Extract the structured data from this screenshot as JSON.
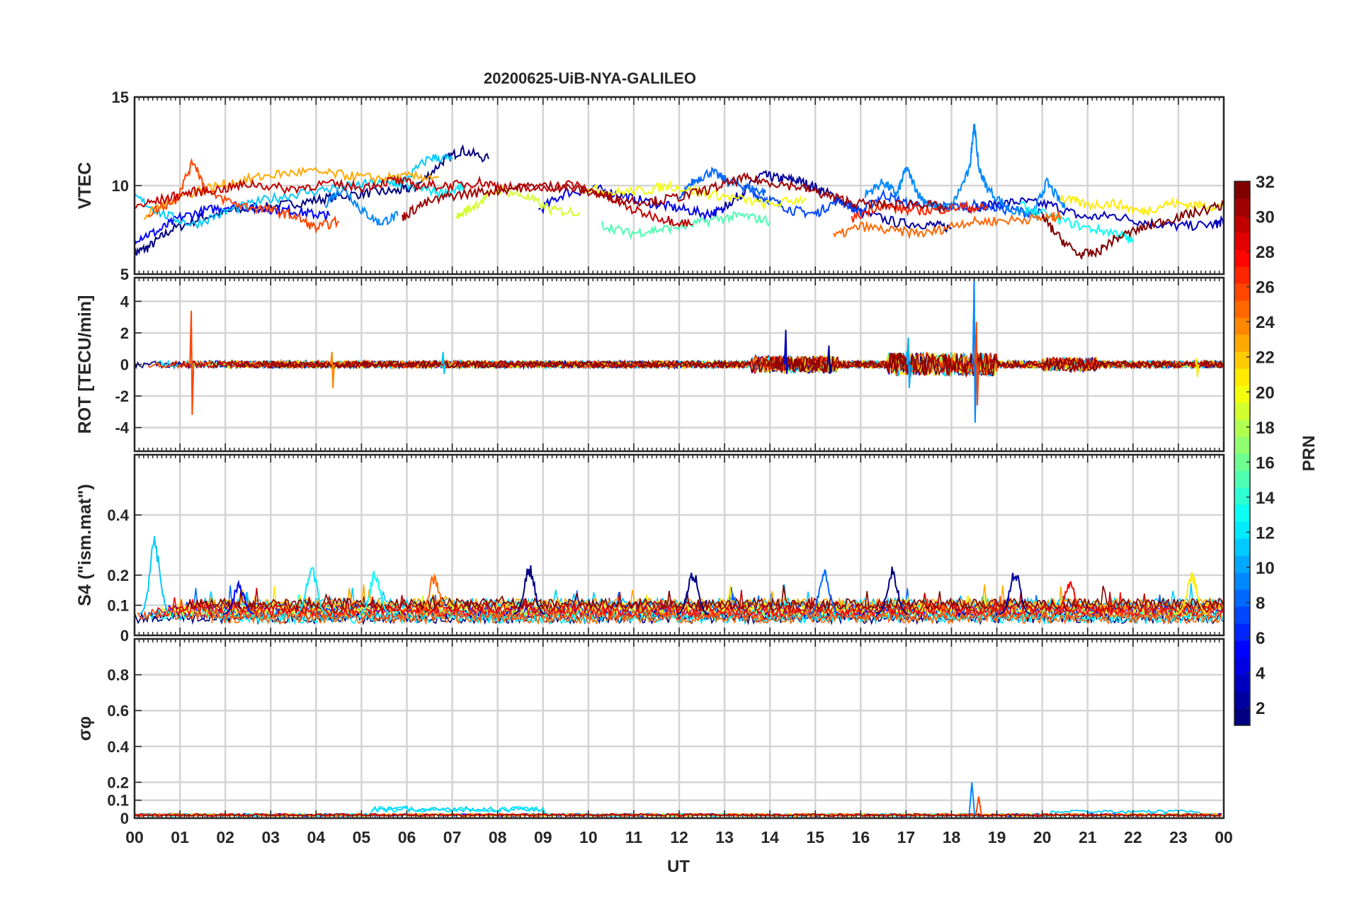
{
  "chart_data": {
    "type": "line",
    "title": "20200625-UiB-NYA-GALILEO",
    "xlabel": "UT",
    "x_ticks": [
      "00",
      "01",
      "02",
      "03",
      "04",
      "05",
      "06",
      "07",
      "08",
      "09",
      "10",
      "11",
      "12",
      "13",
      "14",
      "15",
      "16",
      "17",
      "18",
      "19",
      "20",
      "21",
      "22",
      "23",
      "00"
    ],
    "xlim": [
      0,
      24
    ],
    "grid": true,
    "colormap": "jet",
    "colorbar": {
      "label": "PRN",
      "range": [
        1,
        32
      ],
      "ticks": [
        "2",
        "4",
        "6",
        "8",
        "10",
        "12",
        "14",
        "16",
        "18",
        "20",
        "22",
        "24",
        "26",
        "28",
        "30",
        "32"
      ],
      "placement": "right"
    },
    "panels": [
      {
        "id": "vtec",
        "ylabel": "VTEC",
        "ylim": [
          5,
          15
        ],
        "y_ticks": [
          "15",
          "10",
          "5"
        ],
        "y_tick_values": [
          15,
          10,
          5
        ],
        "series": [
          {
            "prn": 1,
            "x": [
              0,
              0.3,
              0.8,
              1.5,
              2.2,
              3.0,
              3.8,
              4.5,
              5.2,
              5.8,
              6.2,
              6.8,
              7.2,
              7.8
            ],
            "y": [
              6.2,
              6.5,
              7.5,
              8.2,
              8.6,
              8.8,
              9.1,
              9.4,
              9.6,
              9.7,
              9.9,
              11.4,
              12.0,
              11.5
            ]
          },
          {
            "prn": 2,
            "x": [
              13.0,
              13.4,
              13.8,
              14.2,
              14.6,
              15.0,
              15.4,
              16.0,
              16.8,
              17.5,
              18.0
            ],
            "y": [
              8.8,
              9.6,
              10.6,
              10.4,
              10.3,
              9.9,
              9.4,
              8.5,
              7.9,
              7.8,
              7.6
            ]
          },
          {
            "prn": 3,
            "x": [
              18.3,
              18.8,
              19.5,
              20.2,
              20.9,
              21.6,
              22.3,
              23.0,
              23.8,
              24.0
            ],
            "y": [
              8.7,
              8.9,
              9.1,
              8.9,
              8.2,
              8.3,
              7.9,
              7.7,
              7.8,
              8.0
            ]
          },
          {
            "prn": 4,
            "x": [
              8.9,
              9.5,
              10.2,
              10.8,
              11.4,
              12.0,
              12.6,
              13.0
            ],
            "y": [
              8.6,
              9.6,
              9.8,
              9.4,
              9.0,
              8.7,
              8.4,
              8.6
            ]
          },
          {
            "prn": 5,
            "x": [
              0,
              0.5,
              1.0,
              1.6,
              2.2,
              2.8,
              3.4,
              3.9,
              4.3
            ],
            "y": [
              7.0,
              7.4,
              8.2,
              8.6,
              8.9,
              8.7,
              8.6,
              8.4,
              8.3
            ]
          },
          {
            "prn": 7,
            "x": [
              13.6,
              14.0,
              14.5,
              15.0,
              15.5,
              16.0,
              16.5,
              17.0,
              17.5,
              18.0,
              18.6,
              19.3,
              20.0
            ],
            "y": [
              9.5,
              9.2,
              8.6,
              8.4,
              9.2,
              8.5,
              9.5,
              9.0,
              8.9,
              8.8,
              8.9,
              8.6,
              8.4
            ]
          },
          {
            "prn": 8,
            "x": [
              12.0,
              12.3,
              12.7,
              13.1,
              13.5,
              13.9
            ],
            "y": [
              9.2,
              10.2,
              10.8,
              10.2,
              9.9,
              9.6
            ]
          },
          {
            "prn": 9,
            "x": [
              16.1,
              16.5,
              16.8,
              17.0,
              17.3,
              17.6,
              18.0,
              18.4,
              18.5,
              18.6,
              18.8,
              19.3,
              19.8,
              20.1,
              20.5
            ],
            "y": [
              9.5,
              10.2,
              9.5,
              11.0,
              9.4,
              8.8,
              8.8,
              10.9,
              13.6,
              11.0,
              9.8,
              8.6,
              8.4,
              10.2,
              8.7
            ]
          },
          {
            "prn": 9,
            "x": [
              4.2,
              4.6,
              5.0,
              5.4,
              5.8
            ],
            "y": [
              9.0,
              9.9,
              8.6,
              7.9,
              8.3
            ]
          },
          {
            "prn": 11,
            "x": [
              0,
              0.6,
              1.3,
              2.1,
              2.9,
              3.7,
              4.5,
              5.2,
              5.9,
              6.5,
              7.0
            ],
            "y": [
              9.4,
              8.4,
              7.8,
              8.6,
              9.2,
              9.6,
              9.9,
              10.1,
              10.2,
              11.6,
              11.5
            ]
          },
          {
            "prn": 12,
            "x": [
              5.6,
              6.2,
              6.8,
              7.3
            ],
            "y": [
              10.3,
              9.9,
              9.6,
              9.9
            ]
          },
          {
            "prn": 13,
            "x": [
              19.5,
              20.2,
              21.0,
              21.7,
              22.0
            ],
            "y": [
              8.9,
              8.2,
              7.6,
              7.3,
              6.8
            ]
          },
          {
            "prn": 15,
            "x": [
              10.3,
              10.9,
              11.5,
              12.1,
              12.8,
              13.4,
              14.0
            ],
            "y": [
              7.8,
              7.3,
              7.5,
              7.7,
              8.1,
              8.3,
              8.0
            ]
          },
          {
            "prn": 19,
            "x": [
              7.1,
              7.5,
              8.0,
              8.6,
              9.2,
              9.8
            ],
            "y": [
              8.2,
              8.9,
              9.8,
              9.4,
              8.6,
              8.5
            ]
          },
          {
            "prn": 20,
            "x": [
              9.9,
              10.5,
              11.2,
              11.8,
              12.5,
              13.2,
              14.0,
              14.8
            ],
            "y": [
              9.9,
              9.6,
              9.7,
              10.0,
              9.6,
              9.3,
              8.9,
              9.3
            ]
          },
          {
            "prn": 21,
            "x": [
              20.4,
              21.0,
              21.6,
              22.2,
              22.8,
              23.4,
              24.0
            ],
            "y": [
              9.3,
              8.9,
              9.0,
              8.5,
              9.0,
              8.9,
              8.8
            ]
          },
          {
            "prn": 23,
            "x": [
              0.2,
              0.8,
              1.5,
              2.2,
              3.0,
              3.8,
              4.6,
              5.3,
              6.0,
              6.7
            ],
            "y": [
              8.2,
              9.2,
              9.8,
              10.2,
              10.6,
              10.8,
              10.6,
              10.4,
              10.5,
              10.5
            ]
          },
          {
            "prn": 25,
            "x": [
              15.4,
              16.0,
              16.8,
              17.5,
              18.2,
              18.9,
              19.6,
              20.2,
              20.4
            ],
            "y": [
              7.1,
              7.7,
              7.4,
              7.3,
              7.9,
              8.0,
              8.1,
              8.2,
              8.3
            ]
          },
          {
            "prn": 26,
            "x": [
              0.3,
              0.9,
              1.3,
              1.6,
              2.3,
              3.0,
              3.5,
              4.0,
              4.5
            ],
            "y": [
              8.4,
              9.2,
              11.4,
              9.6,
              8.9,
              8.6,
              8.3,
              7.6,
              8.0
            ]
          },
          {
            "prn": 27,
            "x": [
              15.8,
              16.4,
              17.0,
              17.6,
              18.2,
              18.8
            ],
            "y": [
              8.1,
              8.9,
              8.6,
              8.6,
              8.8,
              8.7
            ]
          },
          {
            "prn": 30,
            "x": [
              0,
              0.6,
              1.2,
              1.9,
              2.6,
              3.4,
              4.2,
              5.0,
              5.7,
              6.3,
              7.0,
              7.6,
              8.2,
              8.9,
              9.6,
              10.3,
              11.0,
              11.7,
              12.3
            ],
            "y": [
              8.8,
              9.2,
              9.6,
              9.8,
              10.1,
              9.8,
              10.1,
              9.9,
              10.3,
              10.0,
              10.0,
              10.2,
              9.9,
              9.8,
              10.1,
              9.5,
              8.6,
              8.1,
              7.8
            ]
          },
          {
            "prn": 31,
            "x": [
              5.9,
              6.3,
              6.9,
              7.5,
              8.2,
              8.9,
              9.5,
              10.1,
              10.7,
              11.4,
              12.1,
              12.8,
              13.4,
              14.0,
              14.7,
              15.3,
              15.9,
              16.6,
              17.3,
              17.9
            ],
            "y": [
              8.2,
              8.9,
              9.4,
              9.6,
              9.8,
              10.0,
              9.9,
              9.6,
              9.2,
              9.1,
              9.4,
              9.9,
              10.4,
              10.2,
              9.9,
              9.4,
              9.0,
              8.9,
              9.0,
              8.7
            ]
          },
          {
            "prn": 32,
            "x": [
              20.0,
              20.4,
              20.8,
              21.2,
              21.6,
              22.2,
              22.8,
              23.4,
              24.0
            ],
            "y": [
              8.2,
              7.0,
              6.1,
              6.2,
              7.0,
              7.6,
              8.1,
              8.5,
              8.9
            ]
          }
        ]
      },
      {
        "id": "rot",
        "ylabel": "ROT [TECU/min]",
        "ylim": [
          -5.5,
          5.5
        ],
        "y_ticks": [
          "4",
          "2",
          "0",
          "-2",
          "-4"
        ],
        "y_tick_values": [
          4,
          2,
          0,
          -2,
          -4
        ],
        "spikes": [
          {
            "prn": 26,
            "x": 1.25,
            "y": [
              3.4,
              -3.2
            ]
          },
          {
            "prn": 24,
            "x": 4.35,
            "y": [
              0.8,
              -1.5
            ]
          },
          {
            "prn": 9,
            "x": 18.5,
            "y": [
              5.5,
              -3.7
            ]
          },
          {
            "prn": 26,
            "x": 18.55,
            "y": [
              2.7,
              -2.6
            ]
          },
          {
            "prn": 3,
            "x": 14.35,
            "y": [
              2.2,
              -0.6
            ]
          },
          {
            "prn": 10,
            "x": 17.05,
            "y": [
              1.7,
              -1.5
            ]
          },
          {
            "prn": 2,
            "x": 15.3,
            "y": [
              1.2,
              -0.6
            ]
          },
          {
            "prn": 11,
            "x": 6.8,
            "y": [
              0.8,
              -0.6
            ]
          },
          {
            "prn": 21,
            "x": 23.4,
            "y": [
              0.4,
              -0.8
            ]
          }
        ]
      },
      {
        "id": "s4",
        "ylabel": "S4 (\"ism.mat\")",
        "ylim": [
          0,
          0.6
        ],
        "y_ticks": [
          "0.4",
          "0.2",
          "0.1",
          "0"
        ],
        "y_tick_values": [
          0.4,
          0.2,
          0.1,
          0
        ],
        "peaks": [
          {
            "prn": 11,
            "x": 0.45,
            "y": 0.34
          },
          {
            "prn": 12,
            "x": 3.9,
            "y": 0.25
          },
          {
            "prn": 13,
            "x": 5.3,
            "y": 0.22
          },
          {
            "prn": 25,
            "x": 6.6,
            "y": 0.21
          },
          {
            "prn": 1,
            "x": 8.7,
            "y": 0.24
          },
          {
            "prn": 1,
            "x": 12.3,
            "y": 0.23
          },
          {
            "prn": 8,
            "x": 15.2,
            "y": 0.22
          },
          {
            "prn": 1,
            "x": 16.7,
            "y": 0.23
          },
          {
            "prn": 2,
            "x": 19.4,
            "y": 0.23
          },
          {
            "prn": 28,
            "x": 20.6,
            "y": 0.19
          },
          {
            "prn": 21,
            "x": 23.3,
            "y": 0.21
          },
          {
            "prn": 5,
            "x": 2.3,
            "y": 0.18
          }
        ]
      },
      {
        "id": "sigma_phi",
        "ylabel": "σφ",
        "ylim": [
          0,
          1
        ],
        "y_ticks": [
          "0.8",
          "0.6",
          "0.4",
          "0.2",
          "0.1",
          "0"
        ],
        "y_tick_values": [
          0.8,
          0.6,
          0.4,
          0.2,
          0.1,
          0
        ],
        "peaks": [
          {
            "prn": 9,
            "x": 18.45,
            "y": 0.2
          },
          {
            "prn": 26,
            "x": 18.6,
            "y": 0.12
          }
        ]
      }
    ]
  }
}
